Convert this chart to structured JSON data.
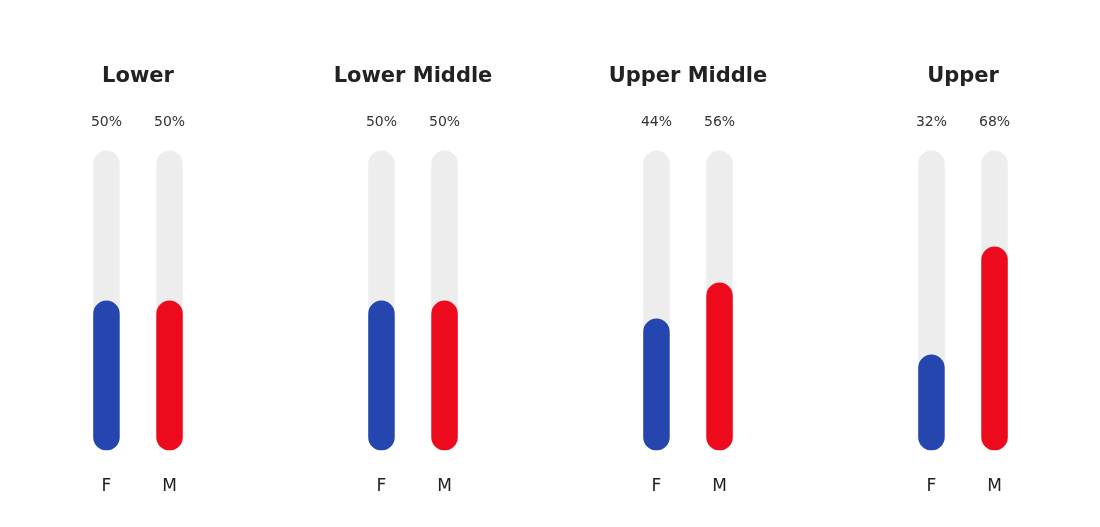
{
  "chart_data": [
    {
      "type": "bar",
      "title": "Lower",
      "categories": [
        "F",
        "M"
      ],
      "ylim": [
        0,
        100
      ],
      "tick_labels": "x",
      "series": [
        {
          "colors": [
            "#2546ae",
            "#ed0a1d"
          ],
          "values": [
            50,
            50
          ],
          "value_labels": [
            "50%",
            "50%"
          ]
        }
      ]
    },
    {
      "type": "bar",
      "title": "Lower Middle",
      "categories": [
        "F",
        "M"
      ],
      "ylim": [
        0,
        100
      ],
      "tick_labels": "x",
      "series": [
        {
          "colors": [
            "#2546ae",
            "#ed0a1d"
          ],
          "values": [
            50,
            50
          ],
          "value_labels": [
            "50%",
            "50%"
          ]
        }
      ]
    },
    {
      "type": "bar",
      "title": "Upper Middle",
      "categories": [
        "F",
        "M"
      ],
      "ylim": [
        0,
        100
      ],
      "tick_labels": "x",
      "series": [
        {
          "colors": [
            "#2546ae",
            "#ed0a1d"
          ],
          "values": [
            44,
            56
          ],
          "value_labels": [
            "44%",
            "56%"
          ]
        }
      ]
    },
    {
      "type": "bar",
      "title": "Upper",
      "categories": [
        "F",
        "M"
      ],
      "ylim": [
        0,
        100
      ],
      "tick_labels": "x",
      "series": [
        {
          "colors": [
            "#2546ae",
            "#ed0a1d"
          ],
          "values": [
            32,
            68
          ],
          "value_labels": [
            "32%",
            "68%"
          ]
        }
      ]
    }
  ]
}
